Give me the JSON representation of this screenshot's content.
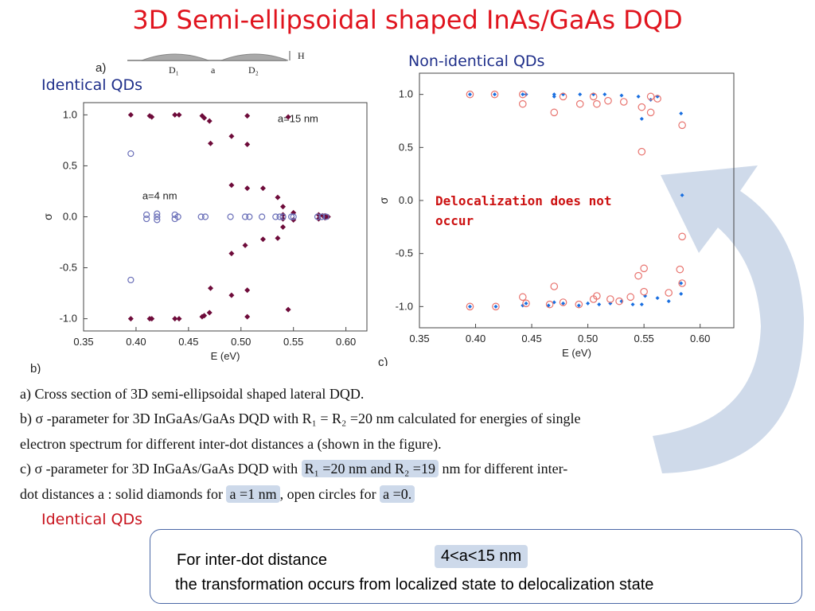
{
  "title": "3D Semi-ellipsoidal shaped InAs/GaAs DQD",
  "cross_section": {
    "label": "a)",
    "d1": "D₁",
    "d2": "D₂",
    "a": "a",
    "h": "H"
  },
  "left_label": "Identical QDs",
  "right_label": "Non-identical QDs",
  "delocalization_note": [
    "Delocalization does not",
    "occur"
  ],
  "captions": {
    "a": "a) Cross section of 3D semi-ellipsoidal shaped lateral DQD.",
    "b_line1": "b) σ -parameter for 3D InGaAs/GaAs DQD with  R₁ = R₂ =20 nm calculated for energies of single",
    "b_line2": "electron spectrum for different inter-dot distances  a  (shown in the figure).",
    "c_line1_pre": "c) σ -parameter for 3D InGaAs/GaAs DQD with",
    "c_line1_hl": "R₁  =20 nm and  R₂ =19",
    "c_line1_post": "nm for different inter-",
    "c_line2_pre": "dot distances  a :  solid diamonds for",
    "c_line2_hl1": "a =1 nm",
    "c_line2_mid": ", open circles for",
    "c_line2_hl2": "a =0."
  },
  "bottom_label": "Identical QDs",
  "info": {
    "line1": "For inter-dot distance",
    "range": "4<a<15 nm",
    "line2": "the transformation occurs from localized state to delocalization state"
  },
  "colors": {
    "title": "#e0141e",
    "diamond_b": "#6e0b3a",
    "circle_b": "#6a6fb8",
    "diamond_c": "#1a6fe0",
    "circle_c": "#e8736e",
    "arrow": "#cfdaea"
  },
  "chart_data": [
    {
      "type": "scatter",
      "panel_label": "b)",
      "xlabel": "E (eV)",
      "ylabel": "σ",
      "xlim": [
        0.35,
        0.62
      ],
      "ylim": [
        -1.12,
        1.12
      ],
      "xticks": [
        0.35,
        0.4,
        0.45,
        0.5,
        0.55,
        0.6
      ],
      "yticks": [
        1.0,
        0.5,
        0.0,
        -0.5,
        -1.0
      ],
      "grid": false,
      "annotations": [
        {
          "text": "a=15 nm",
          "x": 0.535,
          "y": 0.93
        },
        {
          "text": "a=4 nm",
          "x": 0.406,
          "y": 0.17
        }
      ],
      "series": [
        {
          "name": "a=15 nm",
          "marker": "diamond",
          "points": [
            [
              0.395,
              1.0
            ],
            [
              0.395,
              -1.0
            ],
            [
              0.413,
              0.99
            ],
            [
              0.415,
              0.98
            ],
            [
              0.413,
              -1.0
            ],
            [
              0.415,
              -1.0
            ],
            [
              0.437,
              1.0
            ],
            [
              0.441,
              1.0
            ],
            [
              0.437,
              -1.0
            ],
            [
              0.441,
              -1.0
            ],
            [
              0.463,
              0.99
            ],
            [
              0.465,
              0.97
            ],
            [
              0.463,
              -0.98
            ],
            [
              0.465,
              -0.97
            ],
            [
              0.47,
              0.94
            ],
            [
              0.47,
              -0.94
            ],
            [
              0.471,
              0.72
            ],
            [
              0.471,
              -0.7
            ],
            [
              0.491,
              0.79
            ],
            [
              0.491,
              -0.77
            ],
            [
              0.506,
              0.71
            ],
            [
              0.506,
              -0.72
            ],
            [
              0.491,
              0.31
            ],
            [
              0.491,
              -0.36
            ],
            [
              0.504,
              -0.28
            ],
            [
              0.506,
              0.28
            ],
            [
              0.521,
              0.28
            ],
            [
              0.521,
              -0.22
            ],
            [
              0.506,
              0.99
            ],
            [
              0.506,
              -0.98
            ],
            [
              0.535,
              0.19
            ],
            [
              0.535,
              -0.21
            ],
            [
              0.545,
              0.98
            ],
            [
              0.545,
              -0.91
            ],
            [
              0.54,
              0.02
            ],
            [
              0.54,
              -0.02
            ],
            [
              0.55,
              0.04
            ],
            [
              0.55,
              -0.03
            ],
            [
              0.54,
              -0.1
            ],
            [
              0.54,
              0.1
            ],
            [
              0.574,
              0.02
            ],
            [
              0.574,
              -0.02
            ],
            [
              0.578,
              0.01
            ],
            [
              0.58,
              0.01
            ],
            [
              0.58,
              -0.01
            ],
            [
              0.583,
              0.0
            ]
          ]
        },
        {
          "name": "a=4 nm",
          "marker": "circle",
          "points": [
            [
              0.395,
              0.62
            ],
            [
              0.395,
              -0.62
            ],
            [
              0.41,
              0.02
            ],
            [
              0.41,
              -0.02
            ],
            [
              0.42,
              0.0
            ],
            [
              0.42,
              0.03
            ],
            [
              0.42,
              -0.03
            ],
            [
              0.437,
              0.02
            ],
            [
              0.437,
              -0.02
            ],
            [
              0.44,
              0.0
            ],
            [
              0.462,
              0.0
            ],
            [
              0.466,
              0.0
            ],
            [
              0.49,
              0.0
            ],
            [
              0.504,
              0.0
            ],
            [
              0.508,
              0.0
            ],
            [
              0.52,
              0.0
            ],
            [
              0.533,
              0.0
            ],
            [
              0.537,
              0.0
            ],
            [
              0.54,
              0.0
            ],
            [
              0.548,
              0.0
            ],
            [
              0.55,
              0.0
            ],
            [
              0.573,
              0.0
            ],
            [
              0.577,
              0.0
            ],
            [
              0.581,
              0.0
            ]
          ]
        }
      ]
    },
    {
      "type": "scatter",
      "panel_label": "c)",
      "xlabel": "E (eV)",
      "ylabel": "σ",
      "xlim": [
        0.35,
        0.63
      ],
      "ylim": [
        -1.2,
        1.2
      ],
      "xticks": [
        0.35,
        0.4,
        0.45,
        0.5,
        0.55,
        0.6
      ],
      "yticks": [
        1.0,
        0.5,
        0.0,
        -0.5,
        -1.0
      ],
      "grid": false,
      "series": [
        {
          "name": "a=1 nm",
          "marker": "diamond",
          "points": [
            [
              0.395,
              1.0
            ],
            [
              0.417,
              1.0
            ],
            [
              0.442,
              1.0
            ],
            [
              0.445,
              1.0
            ],
            [
              0.47,
              1.0
            ],
            [
              0.47,
              0.98
            ],
            [
              0.478,
              1.0
            ],
            [
              0.493,
              1.0
            ],
            [
              0.505,
              1.0
            ],
            [
              0.515,
              1.0
            ],
            [
              0.53,
              0.99
            ],
            [
              0.545,
              0.98
            ],
            [
              0.548,
              0.77
            ],
            [
              0.556,
              0.95
            ],
            [
              0.562,
              0.98
            ],
            [
              0.583,
              0.82
            ],
            [
              0.584,
              0.05
            ],
            [
              0.583,
              -0.78
            ],
            [
              0.583,
              -0.88
            ],
            [
              0.572,
              -0.95
            ],
            [
              0.562,
              -0.92
            ],
            [
              0.551,
              -0.9
            ],
            [
              0.548,
              -0.98
            ],
            [
              0.54,
              -0.98
            ],
            [
              0.53,
              -0.95
            ],
            [
              0.52,
              -0.97
            ],
            [
              0.51,
              -0.98
            ],
            [
              0.5,
              -0.97
            ],
            [
              0.492,
              -0.99
            ],
            [
              0.478,
              -0.97
            ],
            [
              0.47,
              -0.96
            ],
            [
              0.465,
              -0.99
            ],
            [
              0.445,
              -0.97
            ],
            [
              0.442,
              -0.99
            ],
            [
              0.418,
              -1.0
            ],
            [
              0.395,
              -1.0
            ]
          ]
        },
        {
          "name": "a=0",
          "marker": "circle",
          "points": [
            [
              0.395,
              1.0
            ],
            [
              0.417,
              1.0
            ],
            [
              0.442,
              1.0
            ],
            [
              0.442,
              0.91
            ],
            [
              0.47,
              0.83
            ],
            [
              0.478,
              0.98
            ],
            [
              0.493,
              0.91
            ],
            [
              0.505,
              0.98
            ],
            [
              0.508,
              0.91
            ],
            [
              0.518,
              0.94
            ],
            [
              0.532,
              0.93
            ],
            [
              0.548,
              0.88
            ],
            [
              0.548,
              0.46
            ],
            [
              0.556,
              0.98
            ],
            [
              0.556,
              0.83
            ],
            [
              0.562,
              0.96
            ],
            [
              0.584,
              0.71
            ],
            [
              0.584,
              -0.34
            ],
            [
              0.55,
              -0.64
            ],
            [
              0.545,
              -0.71
            ],
            [
              0.582,
              -0.65
            ],
            [
              0.584,
              -0.78
            ],
            [
              0.572,
              -0.87
            ],
            [
              0.55,
              -0.86
            ],
            [
              0.538,
              -0.91
            ],
            [
              0.528,
              -0.95
            ],
            [
              0.52,
              -0.93
            ],
            [
              0.508,
              -0.9
            ],
            [
              0.505,
              -0.93
            ],
            [
              0.492,
              -0.98
            ],
            [
              0.478,
              -0.96
            ],
            [
              0.47,
              -0.81
            ],
            [
              0.466,
              -0.98
            ],
            [
              0.445,
              -0.97
            ],
            [
              0.442,
              -0.91
            ],
            [
              0.418,
              -1.0
            ],
            [
              0.395,
              -1.0
            ]
          ]
        }
      ]
    }
  ]
}
